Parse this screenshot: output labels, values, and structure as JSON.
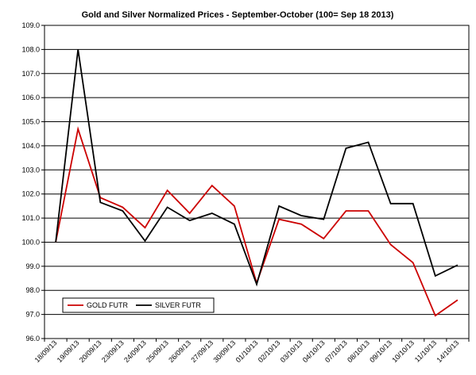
{
  "chart_data": {
    "type": "line",
    "title": "Gold and Silver Normalized Prices - September-October  (100= Sep 18 2013)",
    "xlabel": "",
    "ylabel": "",
    "ylim": [
      96.0,
      109.0
    ],
    "y_ticks": [
      "96.0",
      "97.0",
      "98.0",
      "99.0",
      "100.0",
      "101.0",
      "102.0",
      "103.0",
      "104.0",
      "105.0",
      "106.0",
      "107.0",
      "108.0",
      "109.0"
    ],
    "grid": true,
    "legend_position": "bottom-left",
    "categories": [
      "18/09/13",
      "19/09/13",
      "20/09/13",
      "23/09/13",
      "24/09/13",
      "25/09/13",
      "26/09/13",
      "27/09/13",
      "30/09/13",
      "01/10/13",
      "02/10/13",
      "03/10/13",
      "04/10/13",
      "07/10/13",
      "08/10/13",
      "09/10/13",
      "10/10/13",
      "11/10/13",
      "14/10/13"
    ],
    "series": [
      {
        "name": "GOLD  FUTR",
        "color": "#cc0000",
        "values": [
          100.0,
          104.7,
          101.85,
          101.45,
          100.6,
          102.15,
          101.2,
          102.35,
          101.5,
          98.3,
          100.95,
          100.75,
          100.15,
          101.3,
          101.3,
          99.9,
          99.15,
          96.95,
          97.6
        ]
      },
      {
        "name": "SILVER  FUTR",
        "color": "#000000",
        "values": [
          100.0,
          108.0,
          101.65,
          101.3,
          100.05,
          101.45,
          100.9,
          101.2,
          100.75,
          98.25,
          101.5,
          101.1,
          100.95,
          103.9,
          104.15,
          101.6,
          101.6,
          98.6,
          99.05
        ]
      }
    ]
  }
}
